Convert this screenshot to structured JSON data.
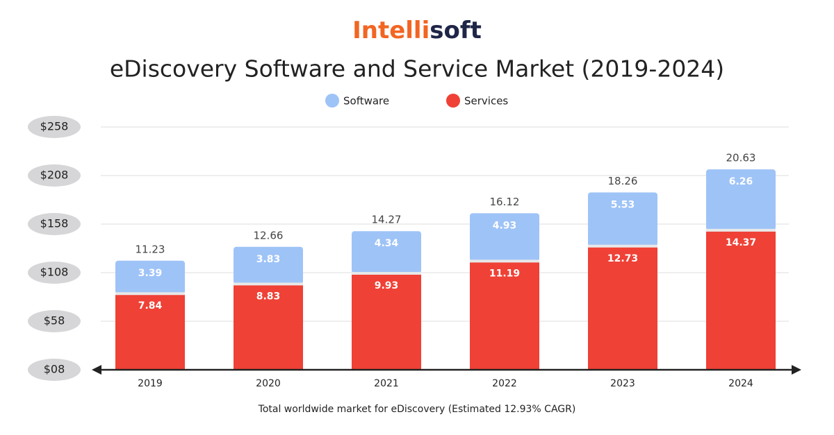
{
  "chart_data": {
    "type": "stacked_bar",
    "brand": [
      "Intelli",
      "soft"
    ],
    "title": "eDiscovery Software and Service Market (2019-2024)",
    "caption": "Total worldwide market for eDiscovery (Estimated 12.93% CAGR)",
    "categories": [
      "2019",
      "2020",
      "2021",
      "2022",
      "2023",
      "2024"
    ],
    "series": [
      {
        "name": "Services",
        "color": "#ef4136",
        "values": [
          7.84,
          8.83,
          9.93,
          11.19,
          12.73,
          14.37
        ]
      },
      {
        "name": "Software",
        "color": "#9ec3f7",
        "values": [
          3.39,
          3.83,
          4.34,
          4.93,
          5.53,
          6.26
        ]
      }
    ],
    "totals": [
      11.23,
      12.66,
      14.27,
      16.12,
      18.26,
      20.63
    ],
    "ylim": [
      0,
      25.5
    ],
    "yticks": [
      {
        "value": 0,
        "label": "$08"
      },
      {
        "value": 5,
        "label": "$58"
      },
      {
        "value": 10,
        "label": "$108"
      },
      {
        "value": 15,
        "label": "$158"
      },
      {
        "value": 20,
        "label": "$208"
      },
      {
        "value": 25,
        "label": "$258"
      }
    ],
    "grid": true
  }
}
